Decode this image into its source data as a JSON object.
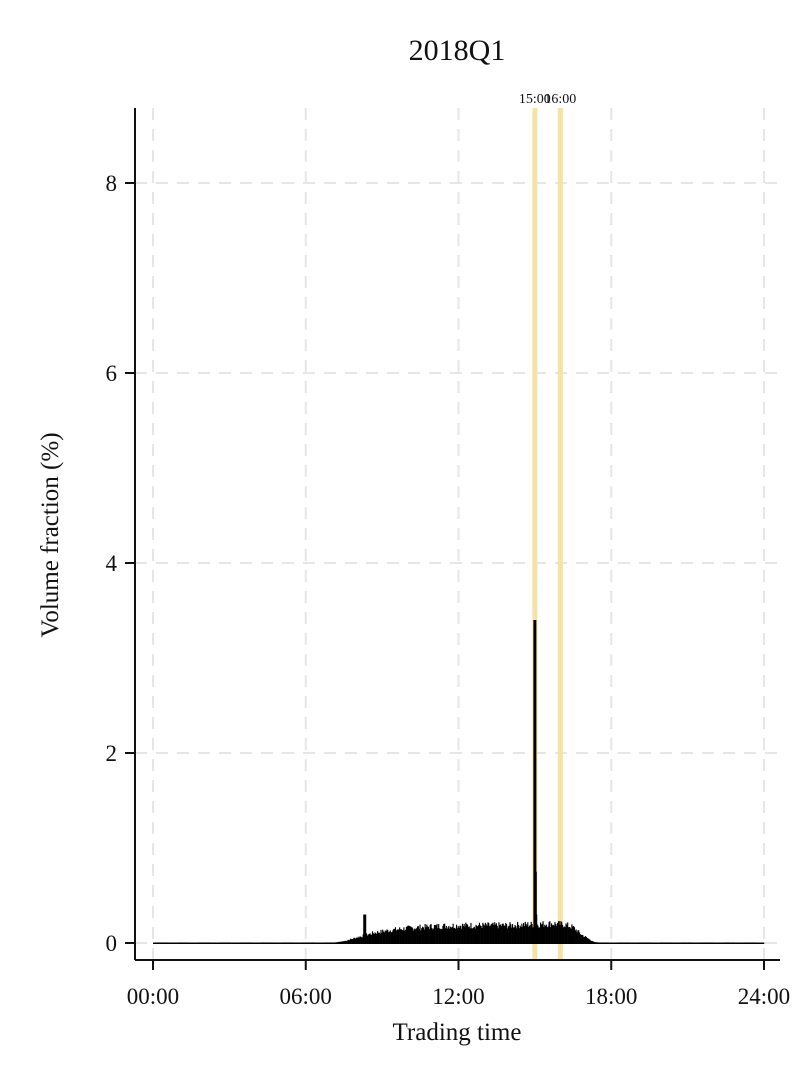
{
  "chart_data": {
    "type": "bar",
    "title": "2018Q1",
    "xlabel": "Trading time",
    "ylabel": "Volume fraction (%)",
    "xlim_minutes": [
      0,
      1440
    ],
    "ylim": [
      0,
      8.6
    ],
    "x_ticks": [
      {
        "value": 0,
        "label": "00:00"
      },
      {
        "value": 360,
        "label": "06:00"
      },
      {
        "value": 720,
        "label": "12:00"
      },
      {
        "value": 1080,
        "label": "18:00"
      },
      {
        "value": 1440,
        "label": "24:00"
      }
    ],
    "y_ticks": [
      {
        "value": 0,
        "label": "0"
      },
      {
        "value": 2,
        "label": "2"
      },
      {
        "value": 4,
        "label": "4"
      },
      {
        "value": 6,
        "label": "6"
      },
      {
        "value": 8,
        "label": "8"
      }
    ],
    "grid": true,
    "reference_lines": [
      {
        "x": 900,
        "label": "15:00",
        "color": "#f5e2a8"
      },
      {
        "x": 960,
        "label": "16:00",
        "color": "#f5e2a8"
      }
    ],
    "bar_color": "#000000",
    "profile": {
      "x": [
        0,
        420,
        450,
        480,
        520,
        560,
        600,
        660,
        720,
        780,
        840,
        880,
        900,
        940,
        970,
        990,
        1010,
        1040,
        1080,
        1440
      ],
      "y": [
        0.005,
        0.01,
        0.03,
        0.07,
        0.12,
        0.15,
        0.17,
        0.19,
        0.2,
        0.2,
        0.2,
        0.21,
        0.21,
        0.22,
        0.21,
        0.18,
        0.1,
        0.02,
        0.005,
        0.005
      ]
    },
    "spikes": [
      {
        "x": 499,
        "y": 0.3
      },
      {
        "x": 900,
        "y": 3.4
      },
      {
        "x": 901,
        "y": 0.75
      },
      {
        "x": 902,
        "y": 0.3
      }
    ]
  }
}
